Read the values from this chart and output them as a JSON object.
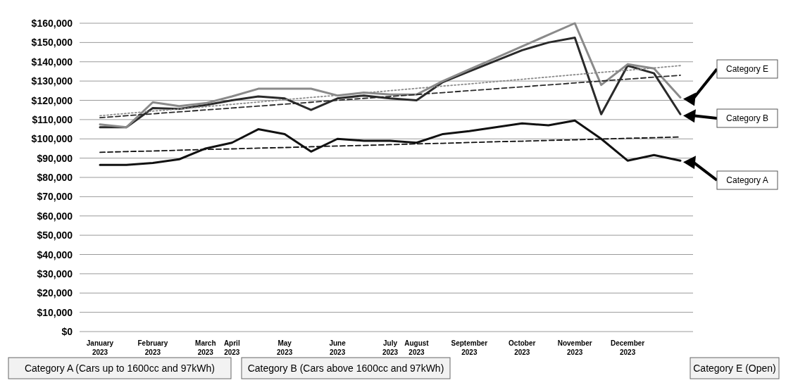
{
  "chart_data": {
    "type": "line",
    "categories": [
      "January 2023",
      null,
      "February 2023",
      null,
      "March 2023",
      "April 2023",
      null,
      "May 2023",
      null,
      "June 2023",
      null,
      "July 2023",
      "August 2023",
      null,
      "September 2023",
      null,
      "October 2023",
      null,
      "November 2023",
      null,
      "December 2023",
      null,
      null
    ],
    "ylim": [
      0,
      160000
    ],
    "yticks": [
      {
        "value": 0,
        "label": "$0"
      },
      {
        "value": 10000,
        "label": "$10,000"
      },
      {
        "value": 20000,
        "label": "$20,000"
      },
      {
        "value": 30000,
        "label": "$30,000"
      },
      {
        "value": 40000,
        "label": "$40,000"
      },
      {
        "value": 50000,
        "label": "$50,000"
      },
      {
        "value": 60000,
        "label": "$60,000"
      },
      {
        "value": 70000,
        "label": "$70,000"
      },
      {
        "value": 80000,
        "label": "$80,000"
      },
      {
        "value": 90000,
        "label": "$90,000"
      },
      {
        "value": 100000,
        "label": "$100,000"
      },
      {
        "value": 110000,
        "label": "$110,000"
      },
      {
        "value": 120000,
        "label": "$120,000"
      },
      {
        "value": 130000,
        "label": "$130,000"
      },
      {
        "value": 140000,
        "label": "$140,000"
      },
      {
        "value": 150000,
        "label": "$150,000"
      },
      {
        "value": 160000,
        "label": "$160,000"
      }
    ],
    "grid": "y",
    "line_style": "solid",
    "series": [
      {
        "name": "Category A",
        "color": "#111111",
        "values": [
          86500,
          86500,
          87500,
          89400,
          95000,
          98000,
          105000,
          102500,
          93400,
          100000,
          99000,
          99000,
          98000,
          102500,
          104000,
          106000,
          108000,
          107000,
          109500,
          100000,
          88700,
          91600,
          88700
        ]
      },
      {
        "name": "Category B",
        "color": "#2a2a2a",
        "values": [
          106000,
          106000,
          116000,
          115500,
          117500,
          120000,
          122000,
          121000,
          115000,
          121000,
          122500,
          121000,
          120000,
          129500,
          135000,
          140500,
          146000,
          150000,
          152500,
          112800,
          138000,
          134000,
          112800
        ]
      },
      {
        "name": "Category E",
        "color": "#8a8a8a",
        "values": [
          107500,
          106000,
          119000,
          117000,
          118500,
          122000,
          126000,
          126000,
          126000,
          122500,
          124000,
          123000,
          123000,
          130000,
          136000,
          142000,
          148000,
          154000,
          160000,
          128000,
          138700,
          136500,
          121500
        ]
      },
      {
        "color": "#111111",
        "line_style": "dashed",
        "values": [
          93000,
          93400,
          93700,
          94100,
          94500,
          94800,
          95200,
          95500,
          95900,
          96300,
          96600,
          97000,
          97400,
          97700,
          98100,
          98500,
          98800,
          99200,
          99500,
          99900,
          100300,
          100600,
          101000
        ]
      },
      {
        "color": "#2a2a2a",
        "line_style": "dashed",
        "values": [
          111000,
          112000,
          113000,
          114000,
          115000,
          116000,
          117000,
          118000,
          119000,
          120000,
          121000,
          122000,
          123000,
          124000,
          125000,
          126000,
          127000,
          128000,
          129000,
          130000,
          131000,
          132000,
          133000
        ]
      },
      {
        "color": "#8a8a8a",
        "line_style": "dotted",
        "values": [
          112000,
          113200,
          114400,
          115500,
          116700,
          117900,
          119100,
          120300,
          121500,
          122600,
          123800,
          125000,
          126200,
          127400,
          128500,
          129700,
          130900,
          132100,
          133300,
          134500,
          135600,
          136800,
          138000
        ]
      }
    ],
    "annotations": [
      "Category A (Cars up to 1600cc and 97kWh)",
      "Category B (Cars above 1600cc and 97kWh)",
      "Category E (Open)"
    ]
  }
}
